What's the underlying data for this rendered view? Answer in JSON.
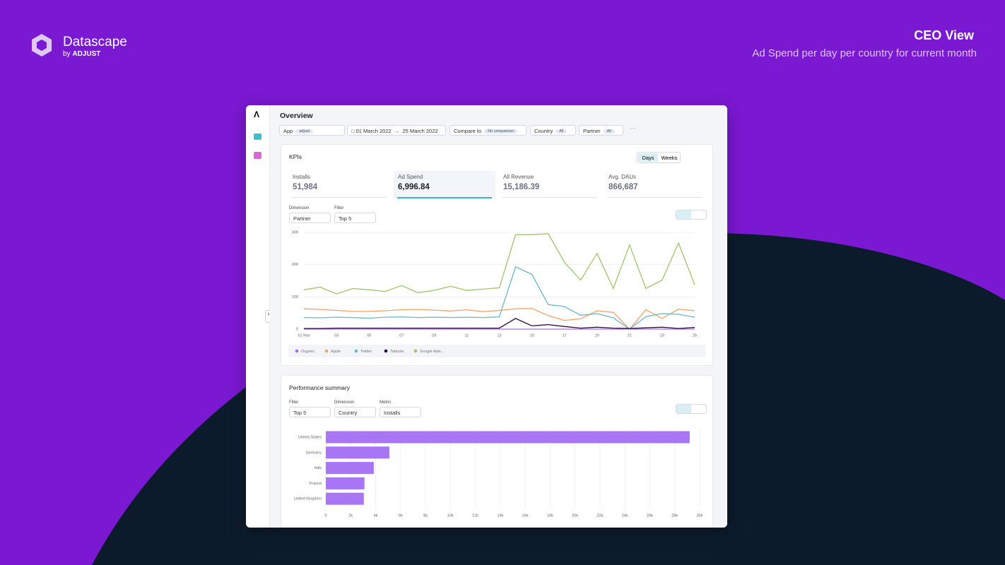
{
  "brand": {
    "name": "Datascape",
    "by": "by",
    "company": "ADJUST"
  },
  "header": {
    "title": "CEO View",
    "subtitle": "Ad Spend per day per country for current month"
  },
  "overview": {
    "title": "Overview",
    "filters": {
      "app": "App",
      "app_value": "adjust",
      "date_start": "01 March 2022",
      "date_end": "25 March 2022",
      "compare": "Compare to",
      "compare_value": "No comparison",
      "country": "Country",
      "country_value": "All",
      "partner": "Partner",
      "partner_value": "All"
    }
  },
  "kpis": {
    "title": "KPIs",
    "toggle": [
      "Days",
      "Weeks"
    ],
    "items": [
      {
        "label": "Installs",
        "value": "51,984"
      },
      {
        "label": "Ad Spend",
        "value": "6,996.84"
      },
      {
        "label": "All Revenue",
        "value": "15,186.39"
      },
      {
        "label": "Avg. DAUs",
        "value": "866,687"
      }
    ],
    "dimension_label": "Dimension",
    "dimension": "Partner",
    "filter_label": "Filter",
    "filter": "Top 5"
  },
  "performance": {
    "title": "Performance summary",
    "filter_label": "Filter",
    "filter": "Top 5",
    "dimension_label": "Dimension",
    "dimension": "Country",
    "metric_label": "Metric",
    "metric": "Installs"
  },
  "chart_data": [
    {
      "type": "line",
      "categories": [
        "01 Mar",
        null,
        "03",
        null,
        "05",
        null,
        "07",
        null,
        "09",
        null,
        "11",
        null,
        "13",
        null,
        "15",
        null,
        "17",
        null,
        "19",
        null,
        "21",
        null,
        "23",
        null,
        "25"
      ],
      "ylim": [
        0,
        300
      ],
      "yticks": [
        0,
        100,
        200,
        300
      ],
      "grid": true,
      "series": [
        {
          "name": "Organic",
          "color": "#a66ef2",
          "values": [
            0,
            0,
            0,
            0,
            0,
            0,
            0,
            0,
            0,
            0,
            0,
            0,
            0,
            0,
            0,
            0,
            0,
            0,
            0,
            0,
            0,
            0,
            0,
            0,
            0
          ]
        },
        {
          "name": "Apple",
          "color": "#f5a06a",
          "values": [
            63,
            61,
            58,
            55,
            55,
            57,
            60,
            61,
            59,
            56,
            60,
            54,
            58,
            63,
            64,
            42,
            27,
            32,
            57,
            52,
            0,
            60,
            33,
            62,
            57
          ]
        },
        {
          "name": "Twitter",
          "color": "#6ab7c0",
          "values": [
            36,
            35,
            37,
            36,
            34,
            37,
            38,
            36,
            37,
            36,
            37,
            36,
            38,
            193,
            170,
            76,
            70,
            43,
            48,
            35,
            0,
            39,
            48,
            46,
            37
          ]
        },
        {
          "name": "Taboola",
          "color": "#2a0a3a",
          "values": [
            2,
            2,
            3,
            3,
            3,
            3,
            3,
            3,
            3,
            3,
            3,
            3,
            3,
            33,
            10,
            14,
            8,
            3,
            6,
            3,
            2,
            4,
            6,
            2,
            5
          ]
        },
        {
          "name": "Google Adw...",
          "color": "#9cc56b",
          "values": [
            122,
            130,
            109,
            126,
            122,
            117,
            135,
            113,
            120,
            133,
            120,
            124,
            128,
            293,
            293,
            296,
            207,
            152,
            235,
            126,
            261,
            126,
            152,
            267,
            137
          ]
        }
      ]
    },
    {
      "type": "bar",
      "orientation": "horizontal",
      "color": "#a875f5",
      "grid": true,
      "categories": [
        "United States",
        "Germany",
        "Italy",
        "France",
        "United Kingdom"
      ],
      "values": [
        29200,
        5100,
        3850,
        3100,
        3050
      ],
      "xlim": [
        0,
        30000
      ],
      "xticks": [
        0,
        {
          "value": 2000,
          "label": "2k"
        },
        {
          "value": 4000,
          "label": "4k"
        },
        {
          "value": 6000,
          "label": "6k"
        },
        {
          "value": 8000,
          "label": "8k"
        },
        {
          "value": 10000,
          "label": "10k"
        },
        {
          "value": 12000,
          "label": "12k"
        },
        {
          "value": 14000,
          "label": "14k"
        },
        {
          "value": 16000,
          "label": "16k"
        },
        {
          "value": 18000,
          "label": "18k"
        },
        {
          "value": 20000,
          "label": "20k"
        },
        {
          "value": 22000,
          "label": "22k"
        },
        {
          "value": 24000,
          "label": "24k"
        },
        {
          "value": 26000,
          "label": "26k"
        },
        {
          "value": 28000,
          "label": "28k"
        },
        {
          "value": 30000,
          "label": "30k"
        }
      ]
    }
  ]
}
